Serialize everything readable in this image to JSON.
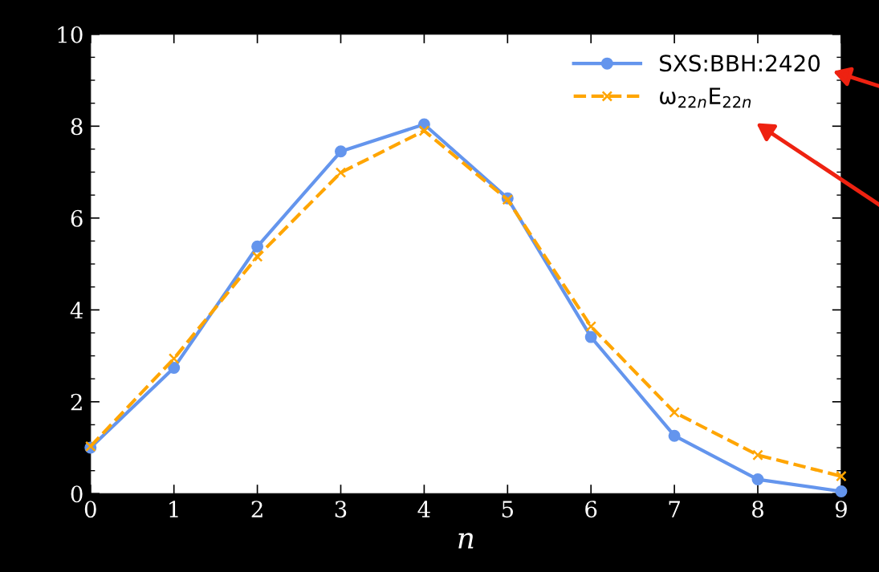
{
  "chart_data": {
    "type": "line",
    "xlabel": "n",
    "x": [
      0,
      1,
      2,
      3,
      4,
      5,
      6,
      7,
      8,
      9
    ],
    "series": [
      {
        "name": "SXS:BBH:2420",
        "color": "#6495ed",
        "marker": "circle",
        "line_style": "solid",
        "values": [
          1.0,
          2.74,
          5.38,
          7.45,
          8.04,
          6.43,
          3.41,
          1.26,
          0.31,
          0.05
        ]
      },
      {
        "name": "ω$_{22n}$E$_{22n}$",
        "color": "#ffa500",
        "marker": "cross",
        "line_style": "dashed",
        "values": [
          1.03,
          2.94,
          5.16,
          6.99,
          7.9,
          6.4,
          3.64,
          1.77,
          0.84,
          0.38
        ]
      }
    ],
    "xlim": [
      0,
      9
    ],
    "ylim": [
      0,
      10
    ],
    "xticks": [
      0,
      1,
      2,
      3,
      4,
      5,
      6,
      7,
      8,
      9
    ],
    "yticks": [
      0,
      2,
      4,
      6,
      8,
      10
    ],
    "grid": false,
    "legend": "top right"
  }
}
